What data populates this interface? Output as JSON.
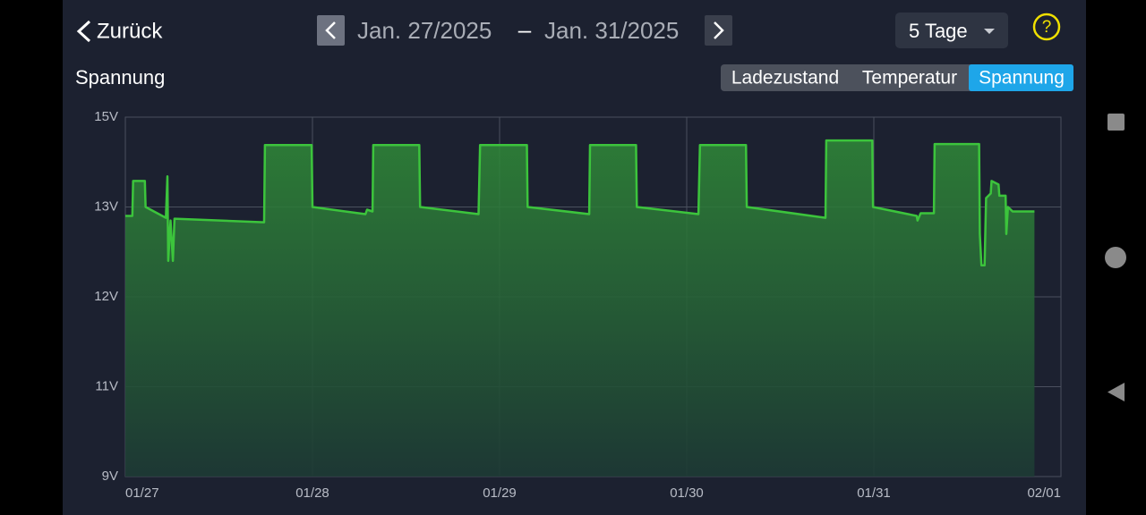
{
  "header": {
    "back": "Zurück",
    "start_date": "Jan. 27/2025",
    "separator": "–",
    "end_date": "Jan. 31/2025",
    "range": "5 Tage",
    "help": "?"
  },
  "tabs": [
    "Ladezustand",
    "Temperatur",
    "Spannung"
  ],
  "chart_data": {
    "type": "line",
    "title": "Spannung",
    "x": [
      0,
      0.9,
      1.0,
      2.5,
      2.6,
      5.2,
      5.4,
      5.5,
      5.8,
      6.1,
      6.3,
      17.8,
      17.9,
      23.9,
      24.0,
      30.8,
      31.0,
      31.7,
      31.8,
      37.7,
      37.8,
      45.3,
      45.5,
      51.5,
      51.6,
      59.5,
      59.6,
      65.5,
      65.6,
      73.5,
      73.7,
      79.6,
      79.7,
      89.8,
      89.9,
      95.8,
      95.9,
      101.5,
      101.6,
      102.0,
      103.7,
      103.8,
      109.5,
      109.6,
      109.8,
      110.2,
      110.4,
      111.0,
      111.1,
      112.0,
      112.1,
      112.9,
      113.0,
      113.2,
      113.8,
      116.6
    ],
    "series": [
      {
        "color": "#3cc43c",
        "values": [
          12.9,
          12.9,
          13.58,
          13.58,
          13.0,
          12.88,
          13.68,
          12.4,
          12.85,
          12.4,
          12.87,
          12.83,
          14.38,
          14.38,
          13.0,
          12.92,
          12.97,
          12.95,
          14.38,
          14.38,
          13.0,
          12.92,
          14.38,
          14.38,
          13.0,
          12.92,
          14.38,
          14.38,
          13.0,
          12.92,
          14.38,
          14.38,
          13.0,
          12.88,
          14.48,
          14.48,
          13.0,
          12.9,
          12.85,
          12.93,
          12.93,
          14.4,
          14.4,
          12.7,
          12.35,
          12.35,
          13.2,
          13.3,
          13.58,
          13.5,
          13.25,
          13.25,
          12.7,
          13.0,
          12.95,
          12.95
        ]
      }
    ],
    "xlim": [
      0,
      120
    ],
    "xticks": [
      {
        "value": 0,
        "label": "01/27"
      },
      {
        "value": 24,
        "label": "01/28"
      },
      {
        "value": 48,
        "label": "01/29"
      },
      {
        "value": 72,
        "label": "01/30"
      },
      {
        "value": 96,
        "label": "01/31"
      },
      {
        "value": 120,
        "label": "02/01"
      }
    ],
    "ylim": [
      9,
      15
    ],
    "yticks": [
      {
        "value": 9,
        "label": "9V"
      },
      {
        "value": 11,
        "label": "11V"
      },
      {
        "value": 12,
        "label": "12V"
      },
      {
        "value": 13,
        "label": "13V"
      },
      {
        "value": 15,
        "label": "15V"
      }
    ],
    "grid": true
  }
}
